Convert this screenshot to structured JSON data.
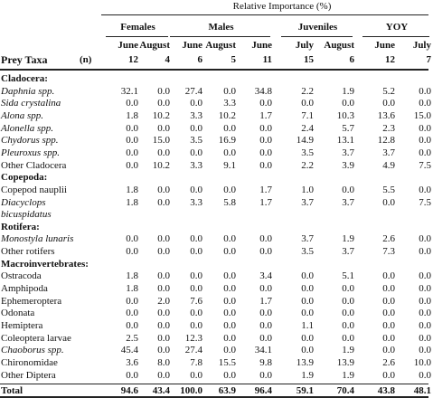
{
  "header": {
    "title": "Relative Importance (%)",
    "groups": [
      {
        "label": "Females",
        "months": [
          "June",
          "August"
        ]
      },
      {
        "label": "Males",
        "months": [
          "June",
          "August",
          "June"
        ]
      },
      {
        "label": "Juveniles",
        "months": [
          "July",
          "August"
        ]
      },
      {
        "label": "YOY",
        "months": [
          "June",
          "July"
        ]
      }
    ],
    "taxa_label": "Prey Taxa",
    "n_label": "(n)",
    "n": [
      "12",
      "4",
      "6",
      "5",
      "11",
      "15",
      "6",
      "12",
      "7"
    ]
  },
  "sections": [
    {
      "name": "Cladocera:",
      "rows": [
        {
          "taxon": "Daphnia spp.",
          "values": [
            "32.1",
            "0.0",
            "27.4",
            "0.0",
            "34.8",
            "2.2",
            "1.9",
            "5.2",
            "0.0"
          ]
        },
        {
          "taxon": "Sida crystalina",
          "values": [
            "0.0",
            "0.0",
            "0.0",
            "3.3",
            "0.0",
            "0.0",
            "0.0",
            "0.0",
            "0.0"
          ]
        },
        {
          "taxon": "Alona spp.",
          "values": [
            "1.8",
            "10.2",
            "3.3",
            "10.2",
            "1.7",
            "7.1",
            "10.3",
            "13.6",
            "15.0"
          ]
        },
        {
          "taxon": "Alonella spp.",
          "values": [
            "0.0",
            "0.0",
            "0.0",
            "0.0",
            "0.0",
            "2.4",
            "5.7",
            "2.3",
            "0.0"
          ]
        },
        {
          "taxon": "Chydorus spp.",
          "values": [
            "0.0",
            "15.0",
            "3.5",
            "16.9",
            "0.0",
            "14.9",
            "13.1",
            "12.8",
            "0.0"
          ]
        },
        {
          "taxon": "Pleuroxus spp.",
          "values": [
            "0.0",
            "0.0",
            "0.0",
            "0.0",
            "0.0",
            "3.5",
            "3.7",
            "3.7",
            "0.0"
          ]
        },
        {
          "taxon": "Other Cladocera",
          "values": [
            "0.0",
            "10.2",
            "3.3",
            "9.1",
            "0.0",
            "2.2",
            "3.9",
            "4.9",
            "7.5"
          ]
        }
      ]
    },
    {
      "name": "Copepoda:",
      "rows": [
        {
          "taxon": "Copepod nauplii",
          "values": [
            "1.8",
            "0.0",
            "0.0",
            "0.0",
            "1.7",
            "1.0",
            "0.0",
            "5.5",
            "0.0"
          ]
        },
        {
          "taxon": "Diacyclops bicuspidatus",
          "values": [
            "1.8",
            "0.0",
            "3.3",
            "5.8",
            "1.7",
            "3.7",
            "3.7",
            "0.0",
            "7.5"
          ]
        }
      ]
    },
    {
      "name": "Rotifera:",
      "rows": [
        {
          "taxon": "Monostyla lunaris",
          "values": [
            "0.0",
            "0.0",
            "0.0",
            "0.0",
            "0.0",
            "3.7",
            "1.9",
            "2.6",
            "0.0"
          ]
        },
        {
          "taxon": "Other rotifers",
          "values": [
            "0.0",
            "0.0",
            "0.0",
            "0.0",
            "0.0",
            "3.5",
            "3.7",
            "7.3",
            "0.0"
          ]
        }
      ]
    },
    {
      "name": "Macroinvertebrates:",
      "rows": [
        {
          "taxon": "Ostracoda",
          "values": [
            "1.8",
            "0.0",
            "0.0",
            "0.0",
            "3.4",
            "0.0",
            "5.1",
            "0.0",
            "0.0"
          ]
        },
        {
          "taxon": "Amphipoda",
          "values": [
            "1.8",
            "0.0",
            "0.0",
            "0.0",
            "0.0",
            "0.0",
            "0.0",
            "0.0",
            "0.0"
          ]
        },
        {
          "taxon": "Ephemeroptera",
          "values": [
            "0.0",
            "2.0",
            "7.6",
            "0.0",
            "1.7",
            "0.0",
            "0.0",
            "0.0",
            "0.0"
          ]
        },
        {
          "taxon": "Odonata",
          "values": [
            "0.0",
            "0.0",
            "0.0",
            "0.0",
            "0.0",
            "0.0",
            "0.0",
            "0.0",
            "0.0"
          ]
        },
        {
          "taxon": "Hemiptera",
          "values": [
            "0.0",
            "0.0",
            "0.0",
            "0.0",
            "0.0",
            "1.1",
            "0.0",
            "0.0",
            "0.0"
          ]
        },
        {
          "taxon": "Coleoptera larvae",
          "values": [
            "2.5",
            "0.0",
            "12.3",
            "0.0",
            "0.0",
            "0.0",
            "0.0",
            "0.0",
            "0.0"
          ]
        },
        {
          "taxon": "Chaoborus spp.",
          "values": [
            "45.4",
            "0.0",
            "27.4",
            "0.0",
            "34.1",
            "0.0",
            "1.9",
            "0.0",
            "0.0"
          ]
        },
        {
          "taxon": "Chironomidae",
          "values": [
            "3.6",
            "8.0",
            "7.8",
            "15.5",
            "9.8",
            "13.9",
            "13.9",
            "2.6",
            "10.0"
          ]
        },
        {
          "taxon": "Other Diptera",
          "values": [
            "0.0",
            "0.0",
            "0.0",
            "0.0",
            "0.0",
            "1.9",
            "1.9",
            "0.0",
            "0.0"
          ]
        }
      ]
    }
  ],
  "total": {
    "label": "Total",
    "values": [
      "94.6",
      "43.4",
      "100.0",
      "63.9",
      "96.4",
      "59.1",
      "70.4",
      "43.8",
      "48.1"
    ]
  }
}
